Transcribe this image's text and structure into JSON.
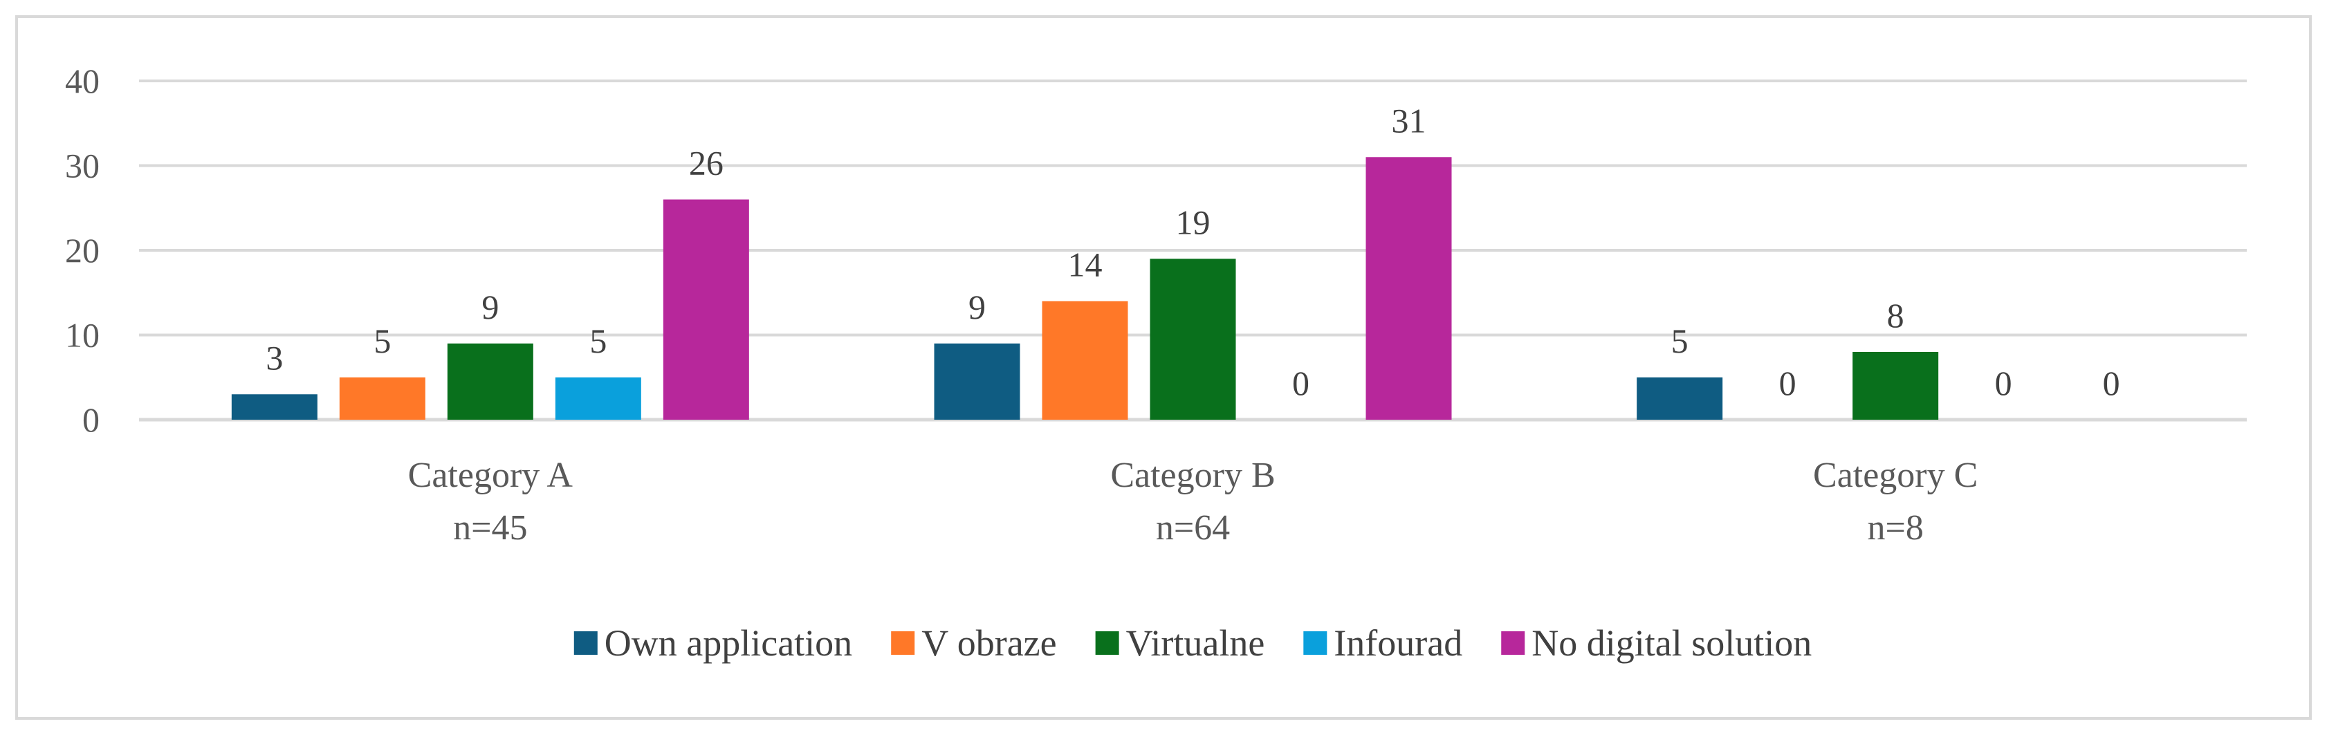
{
  "chart_data": {
    "type": "bar",
    "categories": [
      [
        "Category A",
        "n=45"
      ],
      [
        "Category B",
        "n=64"
      ],
      [
        "Category C",
        "n=8"
      ]
    ],
    "series": [
      {
        "name": "Own application",
        "color": "#0f5c82",
        "values": [
          3,
          9,
          5
        ]
      },
      {
        "name": "V obraze",
        "color": "#ff7828",
        "values": [
          5,
          14,
          0
        ]
      },
      {
        "name": "Virtualne",
        "color": "#09701c",
        "values": [
          9,
          19,
          8
        ]
      },
      {
        "name": "Infourad",
        "color": "#0aa0dc",
        "values": [
          5,
          0,
          0
        ]
      },
      {
        "name": "No digital solution",
        "color": "#b7279b",
        "values": [
          26,
          31,
          0
        ]
      }
    ],
    "ylim": [
      0,
      40
    ],
    "yticks": [
      0,
      10,
      20,
      30,
      40
    ],
    "grid": true,
    "gridline_color": "#d9d9d9",
    "data_labels": true,
    "legend_position": "bottom",
    "title": "",
    "xlabel": "",
    "ylabel": ""
  }
}
